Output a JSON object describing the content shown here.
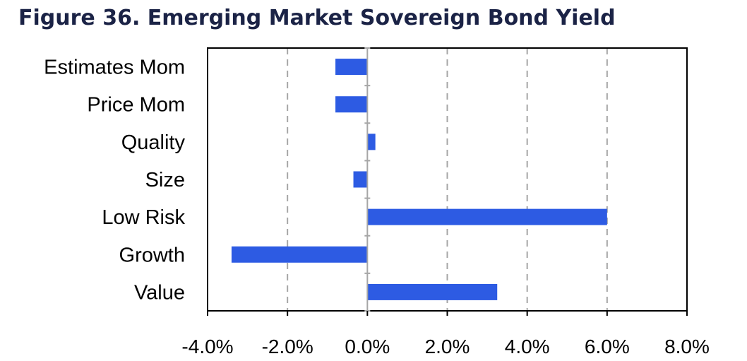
{
  "chart_data": {
    "type": "bar",
    "orientation": "horizontal",
    "title": "Figure 36. Emerging Market Sovereign Bond Yield",
    "categories": [
      "Estimates Mom",
      "Price Mom",
      "Quality",
      "Size",
      "Low Risk",
      "Growth",
      "Value"
    ],
    "values": [
      -0.8,
      -0.8,
      0.2,
      -0.35,
      6.0,
      -3.4,
      3.25
    ],
    "xlim": [
      -4,
      8
    ],
    "xticks": [
      -4,
      -2,
      0,
      2,
      4,
      6,
      8
    ],
    "xtick_labels": [
      "-4.0%",
      "-2.0%",
      "0.0%",
      "2.0%",
      "4.0%",
      "6.0%",
      "8.0%"
    ],
    "grid": "vertical-dashed",
    "bar_color": "#2d5be3",
    "legend": "none"
  }
}
